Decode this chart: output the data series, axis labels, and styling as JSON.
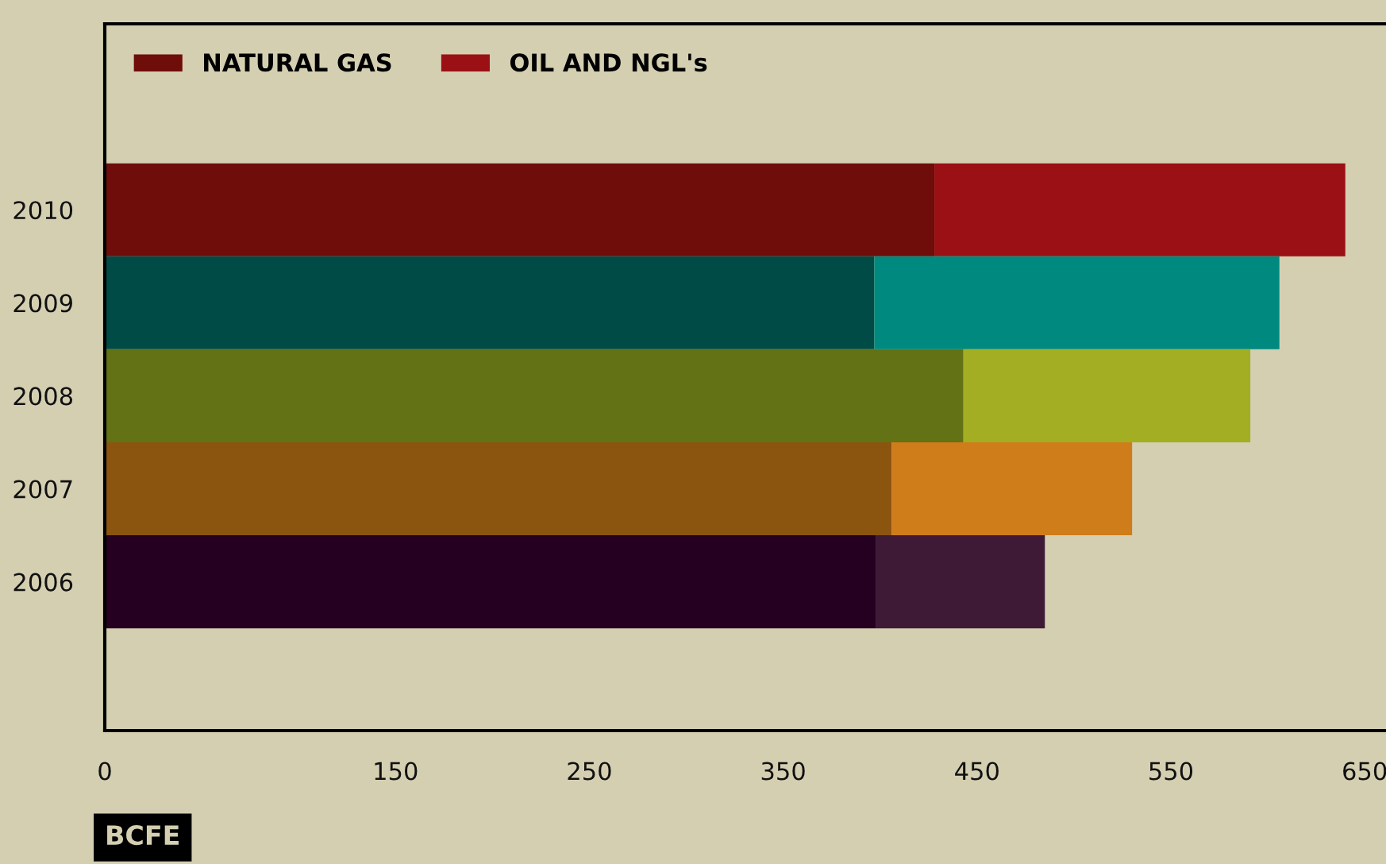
{
  "chart_data": {
    "type": "bar",
    "orientation": "horizontal",
    "stacked": true,
    "xlabel": "BCFE",
    "categories": [
      "2010",
      "2009",
      "2008",
      "2007",
      "2006"
    ],
    "series": [
      {
        "name": "NATURAL GAS",
        "colors": [
          "#6e0d0a",
          "#004b45",
          "#627214",
          "#8b5510",
          "#250020"
        ],
        "values": [
          428,
          397,
          443,
          406,
          398
        ]
      },
      {
        "name": "OIL AND NGL's",
        "colors": [
          "#9b1015",
          "#00897e",
          "#a3ae22",
          "#cf7c1a",
          "#3e1a37"
        ],
        "values": [
          212,
          209,
          148,
          124,
          87
        ]
      }
    ],
    "xlim": [
      0,
      661
    ],
    "xticks": [
      0,
      150,
      250,
      350,
      450,
      550,
      650
    ],
    "grid": false,
    "legend": "top left"
  }
}
